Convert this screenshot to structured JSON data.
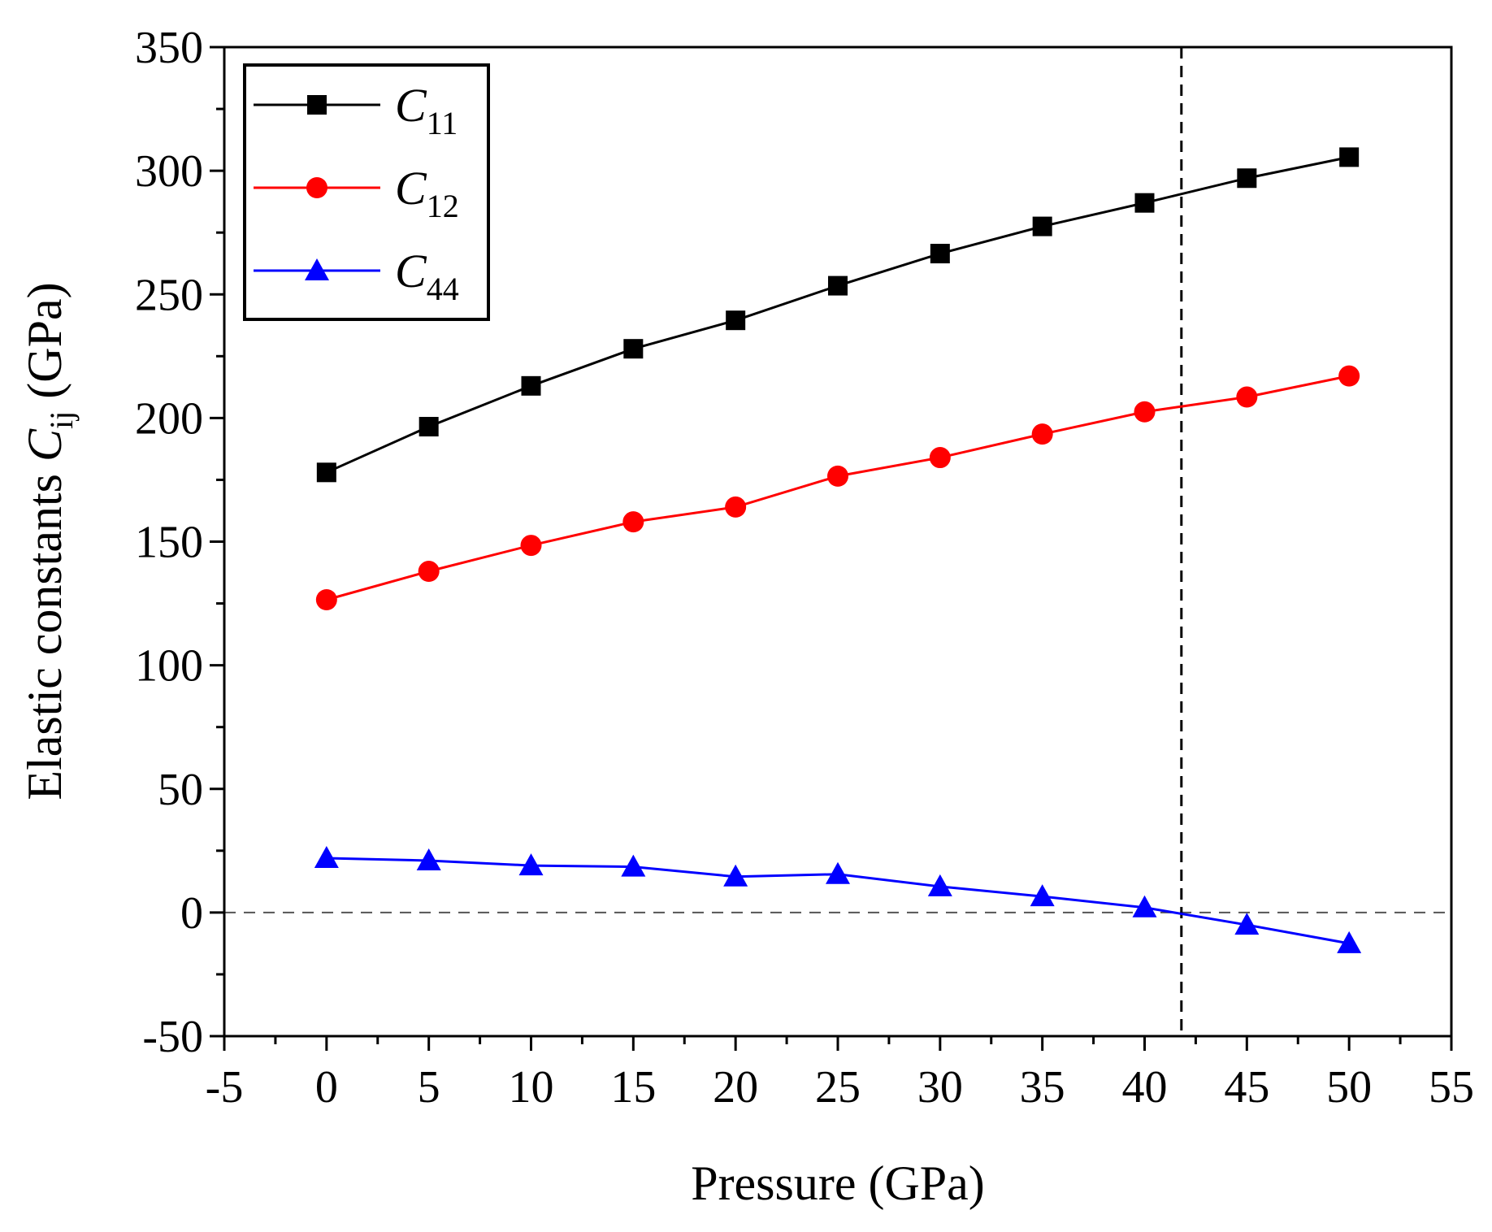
{
  "chart_data": {
    "type": "line",
    "x": [
      0,
      5,
      10,
      15,
      20,
      25,
      30,
      35,
      40,
      45,
      50
    ],
    "xlim": [
      -5,
      55
    ],
    "ylim": [
      -50,
      350
    ],
    "xticks": [
      "-5",
      "0",
      "5",
      "10",
      "15",
      "20",
      "25",
      "30",
      "35",
      "40",
      "45",
      "50",
      "55"
    ],
    "yticks": [
      "-50",
      "0",
      "50",
      "100",
      "150",
      "200",
      "250",
      "300",
      "350"
    ],
    "xlabel": "Pressure (GPa)",
    "ylabel": {
      "prefix": "Elastic constants ",
      "symbol": "C",
      "subscript": "ij",
      "suffix": " (GPa)"
    },
    "series": [
      {
        "name": "C11",
        "symbol": "C",
        "subscript": "11",
        "color": "#000000",
        "marker": "square",
        "values": [
          178,
          196.5,
          213,
          228,
          239.5,
          253.5,
          266.5,
          277.5,
          287,
          297,
          305.5
        ]
      },
      {
        "name": "C12",
        "symbol": "C",
        "subscript": "12",
        "color": "#ff0000",
        "marker": "circle",
        "values": [
          126.5,
          138,
          148.5,
          158,
          164,
          176.5,
          184,
          193.5,
          202.5,
          208.5,
          217
        ]
      },
      {
        "name": "C44",
        "symbol": "C",
        "subscript": "44",
        "color": "#0000ff",
        "marker": "triangle",
        "values": [
          22,
          21,
          19,
          18.5,
          14.5,
          15.5,
          10.5,
          6.5,
          2,
          -5,
          -12.5
        ]
      }
    ],
    "reference_lines": {
      "horizontal_y": 0,
      "vertical_x": 41.8
    },
    "legend_position": "top-left",
    "grid": false
  }
}
